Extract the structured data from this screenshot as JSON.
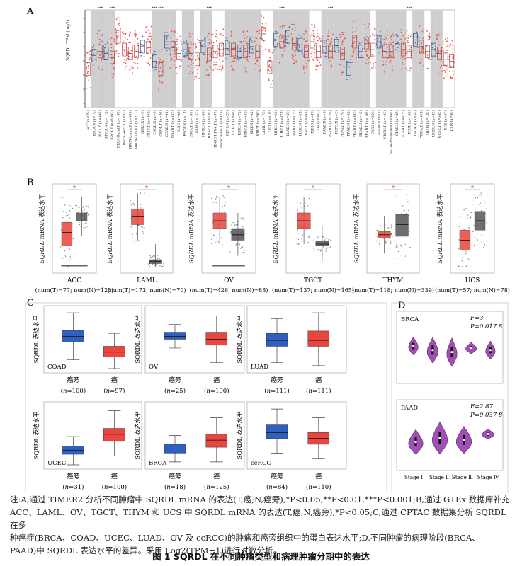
{
  "panel_labels": {
    "a": "A",
    "b": "B",
    "c": "C",
    "d": "D"
  },
  "panel_a": {
    "ylabel": "SQRDL TPM (log2)",
    "categories": [
      "ACC (n=79)",
      "BLCA.N (n=19)",
      "BLCA.T (n=408)",
      "BRCA.N (n=112)",
      "BRCA.T (n=1093)",
      "BRCA-Basal.T (n=190)",
      "BRCA-Her2.T (n=82)",
      "BRCA-LumA.T (n=564)",
      "BRCA-LumB.T (n=217)",
      "CESC.N (n=3)",
      "CESC.T (n=304)",
      "CHOL.N (n=9)",
      "CHOL.T (n=36)",
      "COAD.N (n=41)",
      "COAD.T (n=457)",
      "DLBC (n=48)",
      "ESCA.N (n=11)",
      "ESCA.T (n=184)",
      "GBM (n=153)",
      "HNSC.N (n=44)",
      "HNSC.T (n=520)",
      "HNSC-HPV+.T (n=97)",
      "HNSC-HPV-.T (n=421)",
      "KICH.N (n=25)",
      "KICH.T (n=66)",
      "KIRC.N (n=72)",
      "KIRC.T (n=533)",
      "KIRP.N (n=32)",
      "KIRP.T (n=290)",
      "LAML (n=173)",
      "LGG (n=516)",
      "LIHC.N (n=50)",
      "LIHC.T (n=371)",
      "LUAD.N (n=59)",
      "LUAD.T (n=515)",
      "LUSC.N (n=51)",
      "LUSC.T (n=501)",
      "MESO (n=87)",
      "OV (n=303)",
      "PAAD.N (n=4)",
      "PAAD.T (n=178)",
      "PCPG.N (n=3)",
      "PCPG.T (n=179)",
      "PRAD.N (n=52)",
      "PRAD.T (n=497)",
      "READ.N (n=10)",
      "READ.T (n=166)",
      "SARC (n=259)",
      "SKCM.N (n=1)",
      "SKCM.T (n=103)",
      "SKCM-Metastasis (n=368)",
      "STAD.N (n=35)",
      "STAD.T (n=415)",
      "TGCT (n=150)",
      "THCA.N (n=59)",
      "THCA.T (n=501)",
      "THYM (n=120)",
      "UCEC.N (n=35)",
      "UCEC.T (n=545)",
      "UCS (n=57)",
      "UVM (n=80)"
    ],
    "significance": [
      "",
      "",
      "***",
      "",
      "***",
      "",
      "",
      "",
      "",
      "",
      "",
      "***",
      "***",
      "",
      "",
      "",
      "",
      "",
      "",
      "",
      "***",
      "",
      "",
      "",
      "",
      "",
      "",
      "",
      "",
      "",
      "",
      "",
      "***",
      "",
      "",
      "",
      "",
      "",
      "",
      "",
      "***",
      "",
      "",
      "",
      "",
      "",
      "",
      "",
      "",
      "",
      "",
      "",
      "",
      "***",
      "",
      "",
      "",
      "",
      "",
      "",
      ""
    ]
  },
  "panel_b": {
    "ylabel_italic": "SQRDL",
    "ylabel_rest": " mRNA 表达水平",
    "plots": [
      {
        "name": "ACC",
        "counts": "(num(T)=77; num(N)=128)"
      },
      {
        "name": "LAML",
        "counts": "(num(T)=173; num(N)=70)"
      },
      {
        "name": "OV",
        "counts": "(num(T)=426; num(N)=88)"
      },
      {
        "name": "TGCT",
        "counts": "(num(T)=137; num(N)=165)"
      },
      {
        "name": "THYM",
        "counts": "(num(T)=118; num(N)=339)"
      },
      {
        "name": "UCS",
        "counts": "(num(T)=57; num(N)=78)"
      }
    ],
    "star": "*"
  },
  "panel_c": {
    "ylabel": "SQRDL 表达水平",
    "n_prefix": "n",
    "plots": [
      {
        "name": "COAD",
        "g1": "癌旁",
        "g2": "癌",
        "n1": "100",
        "n2": "97"
      },
      {
        "name": "OV",
        "g1": "癌旁",
        "g2": "癌",
        "n1": "25",
        "n2": "100"
      },
      {
        "name": "LUAD",
        "g1": "癌旁",
        "g2": "癌",
        "n1": "111",
        "n2": "111"
      },
      {
        "name": "UCEC",
        "g1": "癌旁",
        "g2": "癌",
        "n1": "31",
        "n2": "100"
      },
      {
        "name": "BRCA",
        "g1": "癌旁",
        "g2": "癌",
        "n1": "18",
        "n2": "125"
      },
      {
        "name": "ccRCC",
        "g1": "癌旁",
        "g2": "癌",
        "n1": "84",
        "n2": "110"
      }
    ]
  },
  "panel_d": {
    "plots": [
      {
        "name": "BRCA",
        "F": "F=3",
        "P": "P=0.017 8"
      },
      {
        "name": "PAAD",
        "F": "F=2.87",
        "P": "P=0.037 8"
      }
    ],
    "stages": [
      "Stage Ⅰ",
      "Stage Ⅱ",
      "Stage Ⅲ",
      "Stage Ⅳ"
    ]
  },
  "caption": {
    "line1": "注:A,通过 TIMER2 分析不同肿瘤中 SQRDL mRNA 的表达(T,癌;N,癌旁),*P<0.05,**P<0.01,***P<0.001;B,通过 GTEx 数据库补充",
    "line2": "ACC、LAML、OV、TGCT、THYM 和 UCS 中 SQRDL mRNA 的表达(T,癌;N,癌旁),*P<0.05;C,通过 CPTAC 数据集分析 SQRDL 在多",
    "line3": "种癌症(BRCA、COAD、UCEC、LUAD、OV 及 ccRCC)的肿瘤和癌旁组织中的蛋白表达水平;D,不同肿瘤的病理阶段(BRCA、",
    "line4": "PAAD)中 SQRDL 表达水平的差异。采用 Log2(TPM+1)进行对数分析。"
  },
  "figure_title": "图 1   SQRDL 在不同肿瘤类型和病理肿瘤分期中的表达",
  "colors": {
    "tumor": "#e8463e",
    "normal": "#2f5fbf",
    "violin": "#a04fb4",
    "gtex_normal": "#555555",
    "shade": "#cfcfcf"
  }
}
